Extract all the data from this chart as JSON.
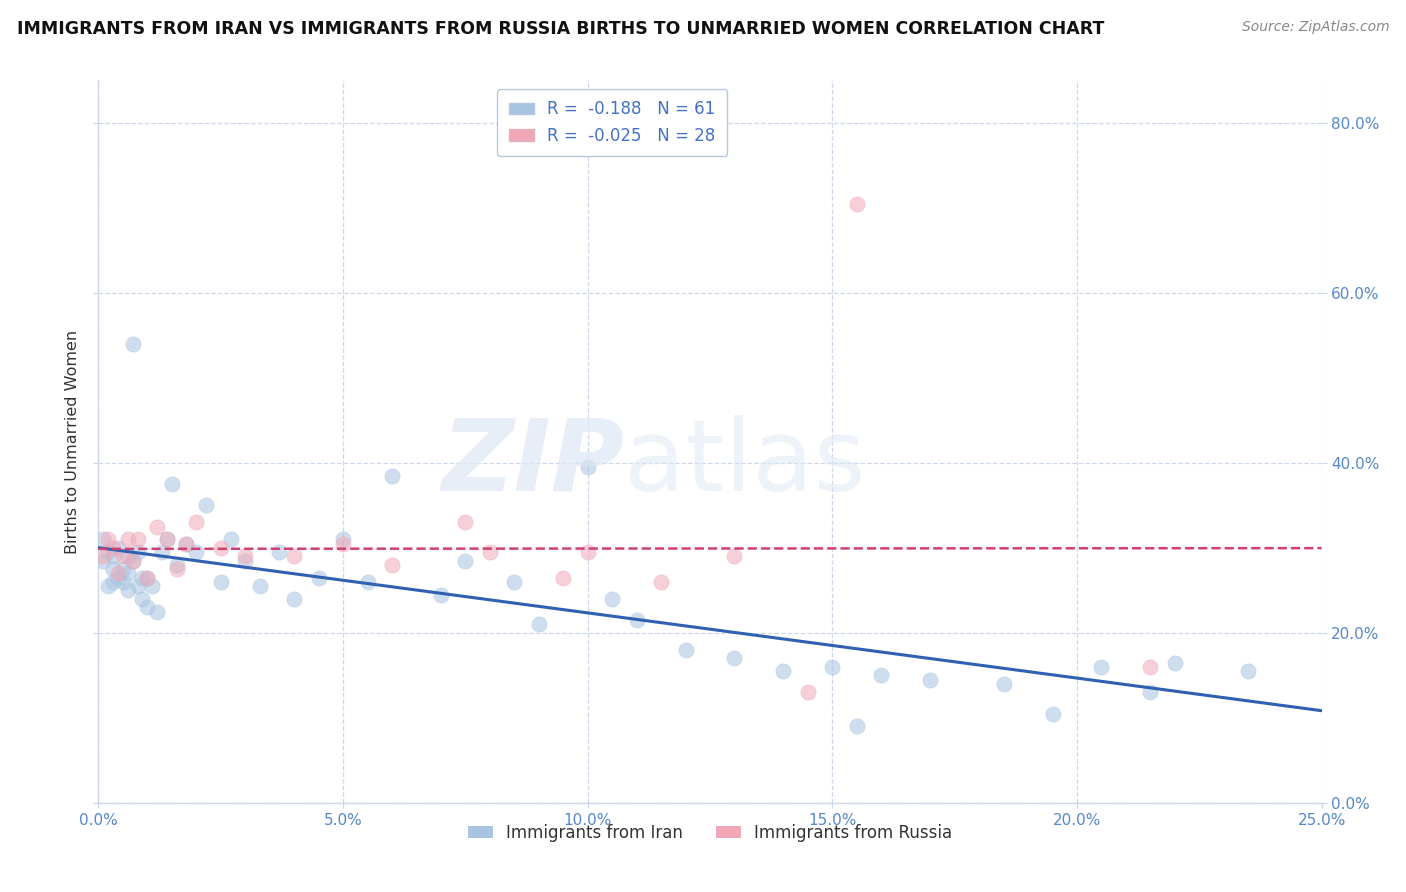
{
  "title": "IMMIGRANTS FROM IRAN VS IMMIGRANTS FROM RUSSIA BIRTHS TO UNMARRIED WOMEN CORRELATION CHART",
  "source": "Source: ZipAtlas.com",
  "ylabel": "Births to Unmarried Women",
  "iran_R": -0.188,
  "iran_N": 61,
  "russia_R": -0.025,
  "russia_N": 28,
  "xlim": [
    0.0,
    0.25
  ],
  "ylim": [
    0.0,
    0.85
  ],
  "iran_color": "#a8c4e0",
  "russia_color": "#f0a8b8",
  "iran_line_color": "#3060b0",
  "russia_line_color": "#d04070",
  "grid_color": "#c8d4e8",
  "background_color": "#ffffff",
  "yticks": [
    0.0,
    0.2,
    0.4,
    0.6,
    0.8
  ],
  "xticks": [
    0.0,
    0.05,
    0.1,
    0.15,
    0.2,
    0.25
  ],
  "legend_iran": "R =  -0.188   N = 61",
  "legend_russia": "R =  -0.025   N = 28",
  "legend_iran_label": "Immigrants from Iran",
  "legend_russia_label": "Immigrants from Russia",
  "iran_x": [
    0.001,
    0.001,
    0.002,
    0.002,
    0.003,
    0.003,
    0.003,
    0.004,
    0.004,
    0.005,
    0.005,
    0.006,
    0.006,
    0.006,
    0.007,
    0.007,
    0.008,
    0.008,
    0.009,
    0.009,
    0.01,
    0.01,
    0.011,
    0.012,
    0.013,
    0.014,
    0.015,
    0.016,
    0.018,
    0.02,
    0.022,
    0.025,
    0.027,
    0.03,
    0.033,
    0.037,
    0.04,
    0.045,
    0.05,
    0.055,
    0.06,
    0.07,
    0.075,
    0.085,
    0.09,
    0.1,
    0.105,
    0.11,
    0.12,
    0.13,
    0.14,
    0.15,
    0.155,
    0.16,
    0.17,
    0.185,
    0.195,
    0.205,
    0.215,
    0.22,
    0.235
  ],
  "iran_y": [
    0.285,
    0.31,
    0.255,
    0.295,
    0.29,
    0.26,
    0.275,
    0.3,
    0.265,
    0.275,
    0.26,
    0.29,
    0.27,
    0.25,
    0.54,
    0.285,
    0.295,
    0.255,
    0.265,
    0.24,
    0.265,
    0.23,
    0.255,
    0.225,
    0.295,
    0.31,
    0.375,
    0.28,
    0.305,
    0.295,
    0.35,
    0.26,
    0.31,
    0.285,
    0.255,
    0.295,
    0.24,
    0.265,
    0.31,
    0.26,
    0.385,
    0.245,
    0.285,
    0.26,
    0.21,
    0.395,
    0.24,
    0.215,
    0.18,
    0.17,
    0.155,
    0.16,
    0.09,
    0.15,
    0.145,
    0.14,
    0.105,
    0.16,
    0.13,
    0.165,
    0.155
  ],
  "russia_x": [
    0.001,
    0.002,
    0.003,
    0.004,
    0.005,
    0.006,
    0.007,
    0.008,
    0.01,
    0.012,
    0.014,
    0.016,
    0.018,
    0.02,
    0.025,
    0.03,
    0.04,
    0.05,
    0.06,
    0.075,
    0.08,
    0.095,
    0.1,
    0.115,
    0.13,
    0.145,
    0.155,
    0.215
  ],
  "russia_y": [
    0.29,
    0.31,
    0.3,
    0.27,
    0.29,
    0.31,
    0.285,
    0.31,
    0.265,
    0.325,
    0.31,
    0.275,
    0.305,
    0.33,
    0.3,
    0.29,
    0.29,
    0.305,
    0.28,
    0.33,
    0.295,
    0.265,
    0.295,
    0.26,
    0.29,
    0.13,
    0.705,
    0.16
  ],
  "bubble_size": 120
}
